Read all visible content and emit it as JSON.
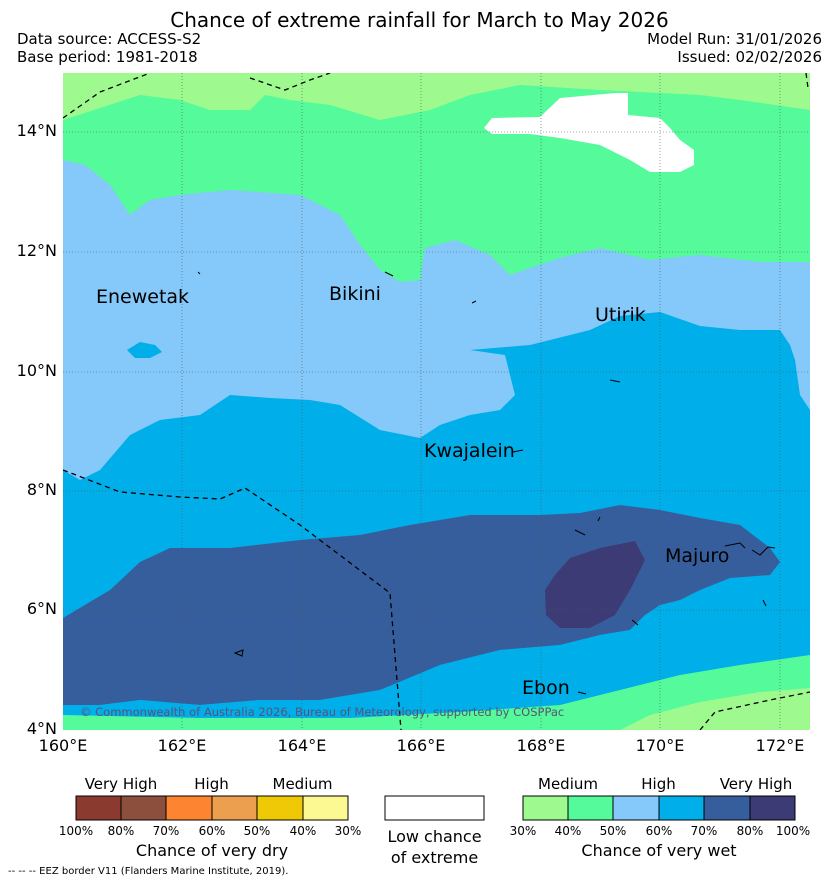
{
  "title": "Chance of extreme rainfall for March to May 2026",
  "header": {
    "data_source": "Data source: ACCESS-S2",
    "base_period": "Base period: 1981-2018",
    "model_run": "Model Run: 31/01/2026",
    "issued": "Issued: 02/02/2026"
  },
  "map": {
    "lat_labels": [
      "14°N",
      "12°N",
      "10°N",
      "8°N",
      "6°N",
      "4°N"
    ],
    "lon_labels": [
      "160°E",
      "162°E",
      "164°E",
      "166°E",
      "168°E",
      "170°E",
      "172°E"
    ],
    "islands": [
      "Enewetak",
      "Bikini",
      "Utirik",
      "Kwajalein",
      "Majuro",
      "Ebon"
    ],
    "copyright": "© Commonwealth of Australia 2026, Bureau of Meteorology, supported by COSPPac",
    "colors": {
      "wet_medium": "#9efa8f",
      "wet_medium2": "#55fa9a",
      "wet_high": "#85c8fa",
      "wet_high2": "#00aee9",
      "wet_veryhigh": "#375e9c",
      "wet_veryhigh2": "#3c3b75"
    }
  },
  "legend_dry": {
    "categories": [
      "Very High",
      "High",
      "Medium"
    ],
    "percents": [
      "100%",
      "80%",
      "70%",
      "60%",
      "50%",
      "40%",
      "30%"
    ],
    "title": "Chance of very dry",
    "colors": [
      "#8b3a30",
      "#8c4f3e",
      "#fd8431",
      "#ec9f4f",
      "#f0c906",
      "#fdf992"
    ]
  },
  "legend_low": {
    "line1": "Low chance",
    "line2": "of extreme"
  },
  "legend_wet": {
    "categories": [
      "Medium",
      "High",
      "Very High"
    ],
    "percents": [
      "30%",
      "40%",
      "50%",
      "60%",
      "70%",
      "80%",
      "100%"
    ],
    "title": "Chance of very wet",
    "colors": [
      "#9efa8f",
      "#55fa9a",
      "#85c8fa",
      "#00aee9",
      "#375e9c",
      "#3c3b75"
    ]
  },
  "footnote": "--  --  -- EEZ border V11 (Flanders Marine Institute, 2019)."
}
